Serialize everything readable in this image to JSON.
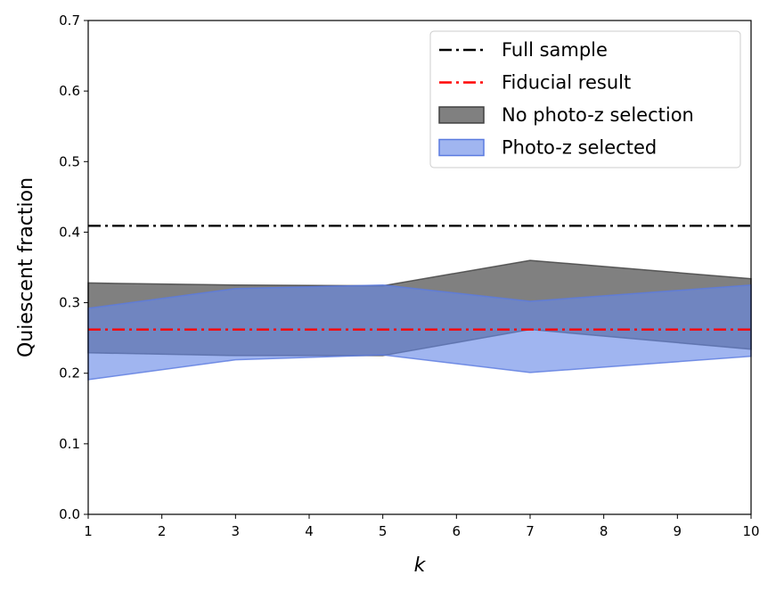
{
  "chart_data": {
    "type": "area",
    "xlabel": "k",
    "ylabel": "Quiescent fraction",
    "xlim": [
      1,
      10
    ],
    "ylim": [
      0.0,
      0.7
    ],
    "xticks": [
      1,
      2,
      3,
      4,
      5,
      6,
      7,
      8,
      9,
      10
    ],
    "yticks": [
      0.0,
      0.1,
      0.2,
      0.3,
      0.4,
      0.5,
      0.6,
      0.7
    ],
    "ytick_labels": [
      "0.0",
      "0.1",
      "0.2",
      "0.3",
      "0.4",
      "0.5",
      "0.6",
      "0.7"
    ],
    "grid": false,
    "legend_placement": "top-right",
    "x": [
      1,
      3,
      5,
      7,
      10
    ],
    "series": [
      {
        "name": "Full sample",
        "kind": "hline",
        "y": 0.409,
        "color": "#000000",
        "style": "dash-dot"
      },
      {
        "name": "Fiducial result",
        "kind": "hline",
        "y": 0.262,
        "color": "#ff0000",
        "style": "dash-dot"
      },
      {
        "name": "No photo-z selection",
        "kind": "band",
        "upper": [
          0.328,
          0.325,
          0.324,
          0.36,
          0.334
        ],
        "lower": [
          0.229,
          0.225,
          0.225,
          0.262,
          0.234
        ],
        "color": "#808080",
        "edge": "#404040"
      },
      {
        "name": "Photo-z selected",
        "kind": "band",
        "upper": [
          0.292,
          0.32,
          0.325,
          0.302,
          0.325
        ],
        "lower": [
          0.191,
          0.219,
          0.226,
          0.201,
          0.224
        ],
        "color": "#6688e6",
        "edge": "#5b7be0"
      }
    ]
  }
}
